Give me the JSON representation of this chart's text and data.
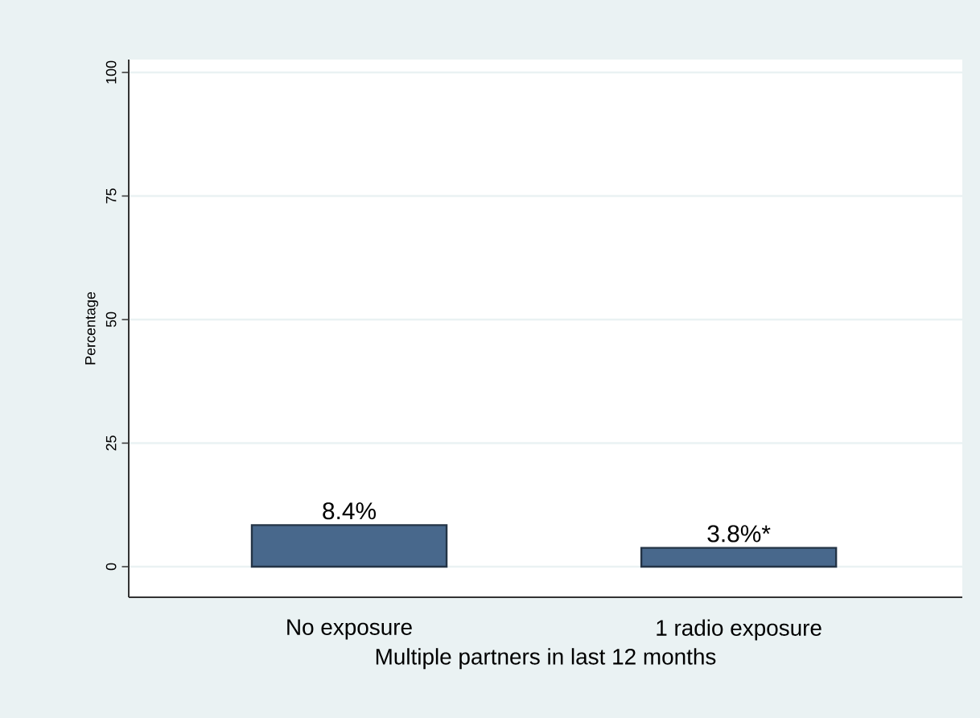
{
  "chart_data": {
    "type": "bar",
    "categories": [
      "No exposure",
      "1 radio exposure"
    ],
    "values": [
      8.4,
      3.8
    ],
    "value_labels": [
      "8.4%",
      "3.8%*"
    ],
    "color": "#48688c",
    "xlabel": "Multiple partners in last 12 months",
    "ylabel": "Percentage",
    "ylim": [
      -6.2,
      102.6
    ],
    "yticks": [
      0,
      25,
      50,
      75,
      100
    ],
    "grid": "y"
  }
}
